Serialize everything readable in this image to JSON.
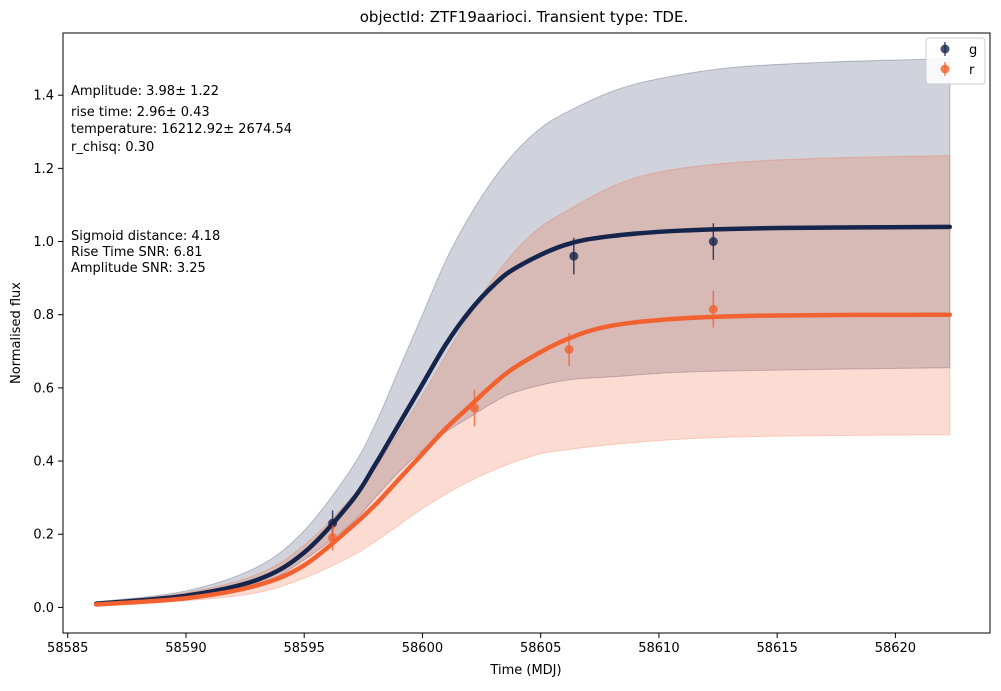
{
  "chart_data": {
    "type": "line",
    "title": "objectId: ZTF19aarioci. Transient type: TDE.",
    "xlabel": "Time (MDJ)",
    "ylabel": "Normalised flux",
    "xlim": [
      58584.8,
      58624.0
    ],
    "ylim": [
      -0.07,
      1.57
    ],
    "xticks": [
      58585,
      58590,
      58595,
      58600,
      58605,
      58610,
      58615,
      58620
    ],
    "yticks": [
      0.0,
      0.2,
      0.4,
      0.6,
      0.8,
      1.0,
      1.2,
      1.4
    ],
    "grid": false,
    "legend_position": "top-right",
    "series": [
      {
        "name": "g",
        "color": "#15254c",
        "points": [
          {
            "x": 58596.2,
            "y": 0.23,
            "err": 0.035
          },
          {
            "x": 58606.4,
            "y": 0.96,
            "err": 0.05
          },
          {
            "x": 58612.3,
            "y": 1.0,
            "err": 0.05
          }
        ],
        "curve": [
          {
            "x": 58586.2,
            "y": 0.01
          },
          {
            "x": 58590,
            "y": 0.032
          },
          {
            "x": 58593,
            "y": 0.075
          },
          {
            "x": 58595,
            "y": 0.15
          },
          {
            "x": 58597,
            "y": 0.29
          },
          {
            "x": 58598,
            "y": 0.39
          },
          {
            "x": 58599,
            "y": 0.5
          },
          {
            "x": 58600,
            "y": 0.61
          },
          {
            "x": 58601,
            "y": 0.72
          },
          {
            "x": 58602,
            "y": 0.81
          },
          {
            "x": 58603,
            "y": 0.88
          },
          {
            "x": 58604,
            "y": 0.93
          },
          {
            "x": 58606,
            "y": 0.99
          },
          {
            "x": 58608,
            "y": 1.015
          },
          {
            "x": 58611,
            "y": 1.03
          },
          {
            "x": 58615,
            "y": 1.037
          },
          {
            "x": 58622.3,
            "y": 1.04
          }
        ],
        "band_upper": [
          {
            "x": 58586.2,
            "y": 0.015
          },
          {
            "x": 58590,
            "y": 0.045
          },
          {
            "x": 58593,
            "y": 0.11
          },
          {
            "x": 58595,
            "y": 0.21
          },
          {
            "x": 58597,
            "y": 0.38
          },
          {
            "x": 58598,
            "y": 0.5
          },
          {
            "x": 58599,
            "y": 0.65
          },
          {
            "x": 58600,
            "y": 0.8
          },
          {
            "x": 58601,
            "y": 0.95
          },
          {
            "x": 58602,
            "y": 1.07
          },
          {
            "x": 58603,
            "y": 1.17
          },
          {
            "x": 58604,
            "y": 1.25
          },
          {
            "x": 58605,
            "y": 1.31
          },
          {
            "x": 58606,
            "y": 1.35
          },
          {
            "x": 58608,
            "y": 1.41
          },
          {
            "x": 58610,
            "y": 1.445
          },
          {
            "x": 58613,
            "y": 1.475
          },
          {
            "x": 58617,
            "y": 1.49
          },
          {
            "x": 58622.3,
            "y": 1.5
          }
        ],
        "band_lower": [
          {
            "x": 58586.2,
            "y": 0.008
          },
          {
            "x": 58590,
            "y": 0.028
          },
          {
            "x": 58593,
            "y": 0.06
          },
          {
            "x": 58595,
            "y": 0.13
          },
          {
            "x": 58597,
            "y": 0.23
          },
          {
            "x": 58598,
            "y": 0.3
          },
          {
            "x": 58599,
            "y": 0.37
          },
          {
            "x": 58600,
            "y": 0.43
          },
          {
            "x": 58601,
            "y": 0.48
          },
          {
            "x": 58602,
            "y": 0.52
          },
          {
            "x": 58603,
            "y": 0.56
          },
          {
            "x": 58604,
            "y": 0.59
          },
          {
            "x": 58606,
            "y": 0.62
          },
          {
            "x": 58608,
            "y": 0.63
          },
          {
            "x": 58612,
            "y": 0.645
          },
          {
            "x": 58622.3,
            "y": 0.655
          }
        ]
      },
      {
        "name": "r",
        "color": "#f26130",
        "points": [
          {
            "x": 58596.2,
            "y": 0.19,
            "err": 0.035
          },
          {
            "x": 58602.2,
            "y": 0.545,
            "err": 0.05
          },
          {
            "x": 58606.2,
            "y": 0.705,
            "err": 0.045
          },
          {
            "x": 58612.3,
            "y": 0.815,
            "err": 0.05
          }
        ],
        "curve": [
          {
            "x": 58586.2,
            "y": 0.008
          },
          {
            "x": 58590,
            "y": 0.025
          },
          {
            "x": 58593,
            "y": 0.06
          },
          {
            "x": 58595,
            "y": 0.115
          },
          {
            "x": 58597,
            "y": 0.22
          },
          {
            "x": 58598,
            "y": 0.28
          },
          {
            "x": 58599,
            "y": 0.35
          },
          {
            "x": 58600,
            "y": 0.42
          },
          {
            "x": 58601,
            "y": 0.49
          },
          {
            "x": 58602,
            "y": 0.55
          },
          {
            "x": 58603,
            "y": 0.61
          },
          {
            "x": 58604,
            "y": 0.66
          },
          {
            "x": 58606,
            "y": 0.73
          },
          {
            "x": 58608,
            "y": 0.77
          },
          {
            "x": 58611,
            "y": 0.79
          },
          {
            "x": 58615,
            "y": 0.798
          },
          {
            "x": 58622.3,
            "y": 0.8
          }
        ],
        "band_upper": [
          {
            "x": 58586.2,
            "y": 0.012
          },
          {
            "x": 58590,
            "y": 0.04
          },
          {
            "x": 58593,
            "y": 0.09
          },
          {
            "x": 58595,
            "y": 0.17
          },
          {
            "x": 58597,
            "y": 0.3
          },
          {
            "x": 58598,
            "y": 0.38
          },
          {
            "x": 58599,
            "y": 0.48
          },
          {
            "x": 58600,
            "y": 0.58
          },
          {
            "x": 58601,
            "y": 0.69
          },
          {
            "x": 58602,
            "y": 0.8
          },
          {
            "x": 58603,
            "y": 0.9
          },
          {
            "x": 58604,
            "y": 0.98
          },
          {
            "x": 58605,
            "y": 1.04
          },
          {
            "x": 58606,
            "y": 1.08
          },
          {
            "x": 58608,
            "y": 1.15
          },
          {
            "x": 58610,
            "y": 1.19
          },
          {
            "x": 58613,
            "y": 1.215
          },
          {
            "x": 58617,
            "y": 1.228
          },
          {
            "x": 58622.3,
            "y": 1.235
          }
        ],
        "band_lower": [
          {
            "x": 58586.2,
            "y": 0.005
          },
          {
            "x": 58590,
            "y": 0.018
          },
          {
            "x": 58593,
            "y": 0.04
          },
          {
            "x": 58595,
            "y": 0.08
          },
          {
            "x": 58597,
            "y": 0.14
          },
          {
            "x": 58598,
            "y": 0.18
          },
          {
            "x": 58599,
            "y": 0.225
          },
          {
            "x": 58600,
            "y": 0.27
          },
          {
            "x": 58601,
            "y": 0.31
          },
          {
            "x": 58602,
            "y": 0.345
          },
          {
            "x": 58603,
            "y": 0.375
          },
          {
            "x": 58604,
            "y": 0.4
          },
          {
            "x": 58605,
            "y": 0.42
          },
          {
            "x": 58606,
            "y": 0.43
          },
          {
            "x": 58608,
            "y": 0.445
          },
          {
            "x": 58611,
            "y": 0.46
          },
          {
            "x": 58615,
            "y": 0.468
          },
          {
            "x": 58622.3,
            "y": 0.472
          }
        ]
      }
    ],
    "annotations": [
      "Amplitude: 3.98± 1.22",
      "rise time: 2.96± 0.43",
      "temperature: 16212.92± 2674.54",
      "r_chisq: 0.30",
      "Sigmoid distance: 4.18",
      "Rise Time SNR: 6.81",
      "Amplitude SNR: 3.25"
    ]
  }
}
